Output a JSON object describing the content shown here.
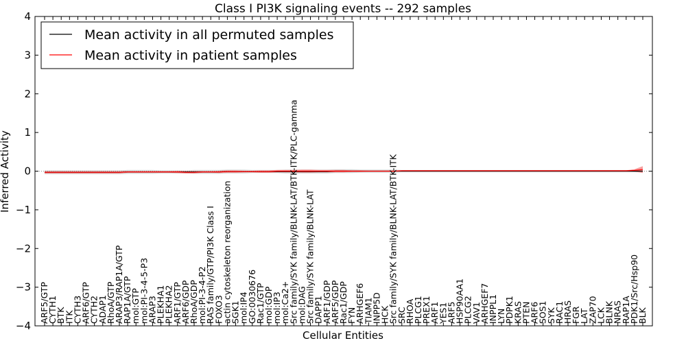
{
  "chart_data": {
    "type": "line",
    "title": "Class I PI3K signaling events -- 292 samples",
    "xlabel": "Cellular Entities",
    "ylabel": "Inferred Activity",
    "ylim": [
      -4,
      4
    ],
    "yticks": [
      -4,
      -3,
      -2,
      -1,
      0,
      1,
      2,
      3,
      4
    ],
    "ytick_labels": [
      "−4",
      "−3",
      "−2",
      "−1",
      "0",
      "1",
      "2",
      "3",
      "4"
    ],
    "legend": {
      "placement": "top-left",
      "entries": [
        {
          "label": "Mean activity in all permuted samples",
          "color": "#000000"
        },
        {
          "label": "Mean activity in patient samples",
          "color": "#ff0000"
        }
      ]
    },
    "categories": [
      "ARF5/GTP",
      "CYTH1",
      "BTK",
      "ITK",
      "CYTH3",
      "ARF6/GTP",
      "CYTH2",
      "ADAP1",
      "RhoA/GTP",
      "ARAP3/RAP1A/GTP",
      "RAP1A/GTP",
      "mol:GTP",
      "mol:PI-3-4-5-P3",
      "ARAP3",
      "PLEKHA1",
      "PLEKHA2",
      "ARF1/GTP",
      "ARF6/GDP",
      "RhoA/GDP",
      "mol:PI-3-4-P2",
      "RAS family/GTP/PI3K Class I",
      "FOXO3",
      "actin cytoskeleton reorganization",
      "SGK1",
      "mol:IP4",
      "GO:0030676",
      "Rac1/GTP",
      "mol:GDP",
      "mol:IP3",
      "mol:Ca2+",
      "Src family/SYK family/BLNK-LAT/BTK-ITK/PLC-gamma",
      "mol:DAG",
      "Src family/SYK family/BLNK-LAT",
      "DAPP1",
      "ARF1/GDP",
      "ARF5/GDP",
      "Rac1/GDP",
      "FYN",
      "ARHGEF6",
      "TIAM1",
      "INPP5D",
      "HCK",
      "Src family/SYK family/BLNK-LAT/BTK-ITK",
      "SRC",
      "RHOA",
      "PLCG1",
      "PREX1",
      "ARF1",
      "YES1",
      "ARF5",
      "HSP90AA1",
      "PLCG2",
      "VAV1",
      "ARHGEF7",
      "INPPL1",
      "LYN",
      "PDPK1",
      "KRAS",
      "PTEN",
      "ARF6",
      "SOS1",
      "SYK",
      "RAC1",
      "HRAS",
      "FGR",
      "LAT",
      "ZAP70",
      "LCK",
      "BLNK",
      "NRAS",
      "RAP1A",
      "PDK1/Src/Hsp90",
      "BLK"
    ],
    "series": [
      {
        "name": "Mean activity in all permuted samples",
        "color": "#000000",
        "values": [
          -0.03,
          -0.03,
          -0.03,
          -0.03,
          -0.03,
          -0.03,
          -0.03,
          -0.03,
          -0.03,
          -0.03,
          -0.02,
          -0.02,
          -0.02,
          -0.02,
          -0.02,
          -0.02,
          -0.02,
          -0.02,
          -0.02,
          -0.02,
          -0.02,
          -0.02,
          -0.01,
          -0.01,
          -0.01,
          -0.01,
          -0.01,
          -0.01,
          -0.01,
          -0.01,
          -0.01,
          -0.01,
          -0.01,
          -0.01,
          -0.01,
          0.0,
          0.0,
          0.0,
          0.0,
          0.0,
          0.0,
          0.0,
          0.0,
          0.0,
          0.0,
          0.0,
          0.0,
          0.0,
          0.0,
          0.0,
          0.0,
          0.0,
          0.0,
          0.0,
          0.0,
          0.0,
          0.0,
          0.0,
          0.0,
          0.0,
          0.0,
          0.0,
          0.0,
          0.0,
          0.0,
          0.0,
          0.0,
          0.0,
          0.0,
          0.0,
          0.0,
          0.0,
          0.0
        ]
      },
      {
        "name": "Mean activity in patient samples",
        "color": "#ff0000",
        "values": [
          -0.03,
          -0.03,
          -0.03,
          -0.03,
          -0.03,
          -0.03,
          -0.03,
          -0.03,
          -0.03,
          -0.03,
          -0.02,
          -0.02,
          -0.02,
          -0.02,
          -0.02,
          -0.02,
          -0.02,
          -0.03,
          -0.03,
          -0.02,
          -0.02,
          -0.02,
          -0.01,
          -0.01,
          -0.01,
          -0.01,
          -0.01,
          -0.01,
          0.0,
          0.0,
          0.0,
          0.0,
          0.0,
          0.0,
          0.0,
          0.0,
          0.0,
          0.0,
          0.0,
          0.0,
          0.0,
          0.0,
          0.0,
          0.01,
          0.01,
          0.01,
          0.01,
          0.01,
          0.01,
          0.01,
          0.01,
          0.01,
          0.01,
          0.01,
          0.01,
          0.01,
          0.01,
          0.01,
          0.01,
          0.01,
          0.01,
          0.01,
          0.01,
          0.01,
          0.01,
          0.01,
          0.01,
          0.01,
          0.01,
          0.01,
          0.01,
          0.02,
          0.04
        ]
      }
    ],
    "bands": {
      "permuted_spread": [
        0.05,
        0.05,
        0.05,
        0.05,
        0.05,
        0.05,
        0.05,
        0.05,
        0.05,
        0.05,
        0.05,
        0.05,
        0.05,
        0.05,
        0.04,
        0.04,
        0.04,
        0.04,
        0.05,
        0.05,
        0.05,
        0.05,
        0.05,
        0.05,
        0.05,
        0.04,
        0.04,
        0.04,
        0.04,
        0.05,
        0.05,
        0.05,
        0.05,
        0.05,
        0.05,
        0.05,
        0.05,
        0.05,
        0.04,
        0.04,
        0.04,
        0.04,
        0.04,
        0.03,
        0.03,
        0.03,
        0.03,
        0.03,
        0.03,
        0.03,
        0.03,
        0.03,
        0.03,
        0.03,
        0.03,
        0.03,
        0.03,
        0.03,
        0.03,
        0.03,
        0.03,
        0.03,
        0.03,
        0.03,
        0.03,
        0.03,
        0.03,
        0.03,
        0.03,
        0.03,
        0.03,
        0.03,
        0.03
      ],
      "patient_spread": [
        0.03,
        0.03,
        0.03,
        0.03,
        0.03,
        0.03,
        0.03,
        0.03,
        0.03,
        0.03,
        0.02,
        0.02,
        0.02,
        0.02,
        0.02,
        0.02,
        0.03,
        0.03,
        0.03,
        0.02,
        0.02,
        0.03,
        0.03,
        0.03,
        0.02,
        0.02,
        0.03,
        0.03,
        0.03,
        0.03,
        0.03,
        0.04,
        0.04,
        0.03,
        0.03,
        0.03,
        0.03,
        0.02,
        0.02,
        0.01,
        0.01,
        0.01,
        0.01,
        0.01,
        0.01,
        0.01,
        0.01,
        0.01,
        0.01,
        0.01,
        0.01,
        0.01,
        0.01,
        0.01,
        0.01,
        0.01,
        0.01,
        0.01,
        0.01,
        0.01,
        0.01,
        0.01,
        0.01,
        0.01,
        0.01,
        0.01,
        0.01,
        0.01,
        0.01,
        0.01,
        0.01,
        0.03,
        0.09
      ]
    },
    "grid": false,
    "colors": {
      "permuted_band": "#c8c8c8",
      "patient_band": "#f08080",
      "zero_line": "#888888"
    }
  }
}
